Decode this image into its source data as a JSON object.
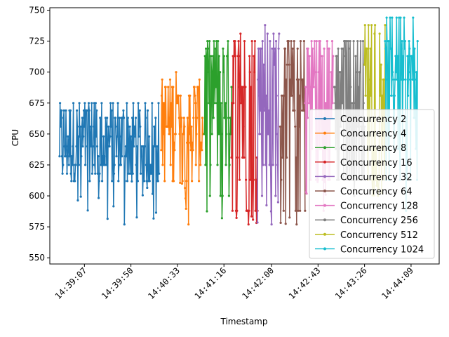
{
  "chart_data": {
    "type": "line",
    "title": "",
    "xlabel": "Timestamp",
    "ylabel": "CPU",
    "x_unit": "time (HH:MM:SS)",
    "xlim": [
      "14:38:35",
      "14:44:35"
    ],
    "ylim": [
      545,
      752
    ],
    "x_ticks": [
      "14:39:07",
      "14:39:50",
      "14:40:33",
      "14:41:16",
      "14:42:00",
      "14:42:43",
      "14:43:26",
      "14:44:09"
    ],
    "y_ticks": [
      550,
      575,
      600,
      625,
      650,
      675,
      700,
      725,
      750
    ],
    "grid": false,
    "legend_position": "lower-right",
    "series": [
      {
        "name": "Concurrency 2",
        "color": "#1f77b4",
        "t_start": "14:38:44",
        "t_end": "14:40:16",
        "y_min": 577,
        "y_max": 675,
        "levels": [
          612,
          618,
          625,
          632,
          640,
          648,
          656,
          663,
          669,
          675
        ]
      },
      {
        "name": "Concurrency 4",
        "color": "#ff7f0e",
        "t_start": "14:40:18",
        "t_end": "14:40:57",
        "y_min": 577,
        "y_max": 700,
        "levels": [
          612,
          625,
          637,
          643,
          650,
          656,
          663,
          675,
          681,
          688,
          694
        ]
      },
      {
        "name": "Concurrency 8",
        "color": "#2ca02c",
        "t_start": "14:40:58",
        "t_end": "14:41:23",
        "y_min": 582,
        "y_max": 725,
        "levels": [
          600,
          625,
          650,
          663,
          675,
          688,
          700,
          713,
          719,
          725
        ]
      },
      {
        "name": "Concurrency 16",
        "color": "#d62728",
        "t_start": "14:41:23",
        "t_end": "14:41:47",
        "y_min": 577,
        "y_max": 731,
        "levels": [
          588,
          613,
          631,
          656,
          675,
          688,
          700,
          713,
          725,
          731
        ]
      },
      {
        "name": "Concurrency 32",
        "color": "#9467bd",
        "t_start": "14:41:47",
        "t_end": "14:42:07",
        "y_min": 577,
        "y_max": 738,
        "levels": [
          600,
          625,
          650,
          669,
          681,
          694,
          706,
          719,
          725,
          731
        ]
      },
      {
        "name": "Concurrency 64",
        "color": "#8c564b",
        "t_start": "14:42:08",
        "t_end": "14:42:31",
        "y_min": 577,
        "y_max": 725,
        "levels": [
          588,
          613,
          631,
          656,
          669,
          681,
          694,
          706,
          719,
          725
        ]
      },
      {
        "name": "Concurrency 128",
        "color": "#e377c2",
        "t_start": "14:42:31",
        "t_end": "14:42:57",
        "y_min": 588,
        "y_max": 725,
        "levels": [
          613,
          638,
          663,
          675,
          688,
          700,
          713,
          719,
          725
        ]
      },
      {
        "name": "Concurrency 256",
        "color": "#7f7f7f",
        "t_start": "14:42:58",
        "t_end": "14:43:26",
        "y_min": 600,
        "y_max": 725,
        "levels": [
          613,
          638,
          656,
          675,
          688,
          700,
          713,
          719,
          725
        ]
      },
      {
        "name": "Concurrency 512",
        "color": "#bcbd22",
        "t_start": "14:43:26",
        "t_end": "14:43:45",
        "y_min": 600,
        "y_max": 738,
        "levels": [
          613,
          638,
          663,
          681,
          694,
          706,
          719,
          731,
          738
        ]
      },
      {
        "name": "Concurrency 1024",
        "color": "#17becf",
        "t_start": "14:43:45",
        "t_end": "14:44:15",
        "y_min": 588,
        "y_max": 744,
        "levels": [
          613,
          638,
          663,
          681,
          694,
          700,
          713,
          719,
          725,
          744
        ]
      }
    ]
  }
}
